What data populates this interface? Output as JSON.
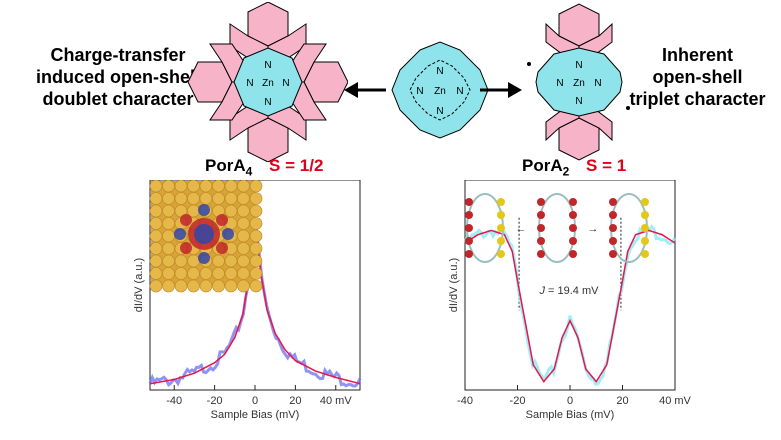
{
  "left_text": [
    "Charge-transfer",
    "induced open-shell",
    "doublet character"
  ],
  "right_text": [
    "Inherent",
    "open-shell",
    "triplet character"
  ],
  "left_label": {
    "name": "PorA",
    "sub": "4",
    "spin": "S = 1/2"
  },
  "right_label": {
    "name": "PorA",
    "sub": "2",
    "spin": "S = 1"
  },
  "atom_labels": {
    "zn": "Zn",
    "n": "N"
  },
  "annotation_j": {
    "italic": "J",
    "rest": " = 19.4 mV"
  },
  "colors": {
    "porphyrin": "#8fe3ea",
    "annulated": "#f7b3c8",
    "fit_line": "#e8174a",
    "data_left": "#6b6ff0",
    "data_right": "#7fe8f5",
    "substrate": "#d8a438"
  },
  "chart_data": [
    {
      "type": "line",
      "title": "",
      "xlabel": "Sample Bias (mV)",
      "ylabel": "dI/dV (a.u.)",
      "xlim": [
        -52,
        52
      ],
      "ylim": [
        0,
        1
      ],
      "x_ticks": [
        "-40",
        "-20",
        "0",
        "20",
        "40 mV"
      ],
      "x_tick_values": [
        -40,
        -20,
        0,
        20,
        40
      ],
      "series": [
        {
          "role": "fit",
          "x": [
            -52,
            -40,
            -30,
            -20,
            -15,
            -10,
            -6,
            -3,
            -1,
            0,
            1,
            3,
            6,
            10,
            15,
            20,
            30,
            40,
            52
          ],
          "y": [
            0.03,
            0.05,
            0.08,
            0.13,
            0.17,
            0.25,
            0.36,
            0.54,
            0.73,
            0.8,
            0.73,
            0.55,
            0.38,
            0.27,
            0.19,
            0.14,
            0.09,
            0.06,
            0.03
          ]
        }
      ]
    },
    {
      "type": "line",
      "title": "",
      "xlabel": "Sample Bias (mV)",
      "ylabel": "dI/dV (a.u.)",
      "xlim": [
        -40,
        40
      ],
      "ylim": [
        0,
        1
      ],
      "x_ticks": [
        "-40",
        "-20",
        "0",
        "20",
        "40 mV"
      ],
      "x_tick_values": [
        -40,
        -20,
        0,
        20,
        40
      ],
      "series": [
        {
          "role": "fit",
          "x": [
            -40,
            -35,
            -30,
            -25,
            -22,
            -20,
            -17,
            -14,
            -10,
            -6,
            -3,
            0,
            3,
            6,
            10,
            14,
            17,
            20,
            22,
            25,
            30,
            35,
            40
          ],
          "y": [
            0.7,
            0.74,
            0.76,
            0.74,
            0.66,
            0.52,
            0.32,
            0.12,
            0.04,
            0.1,
            0.25,
            0.33,
            0.25,
            0.1,
            0.04,
            0.12,
            0.32,
            0.52,
            0.66,
            0.74,
            0.76,
            0.74,
            0.7
          ]
        }
      ],
      "vlines": [
        -19.4,
        19.4
      ]
    }
  ]
}
